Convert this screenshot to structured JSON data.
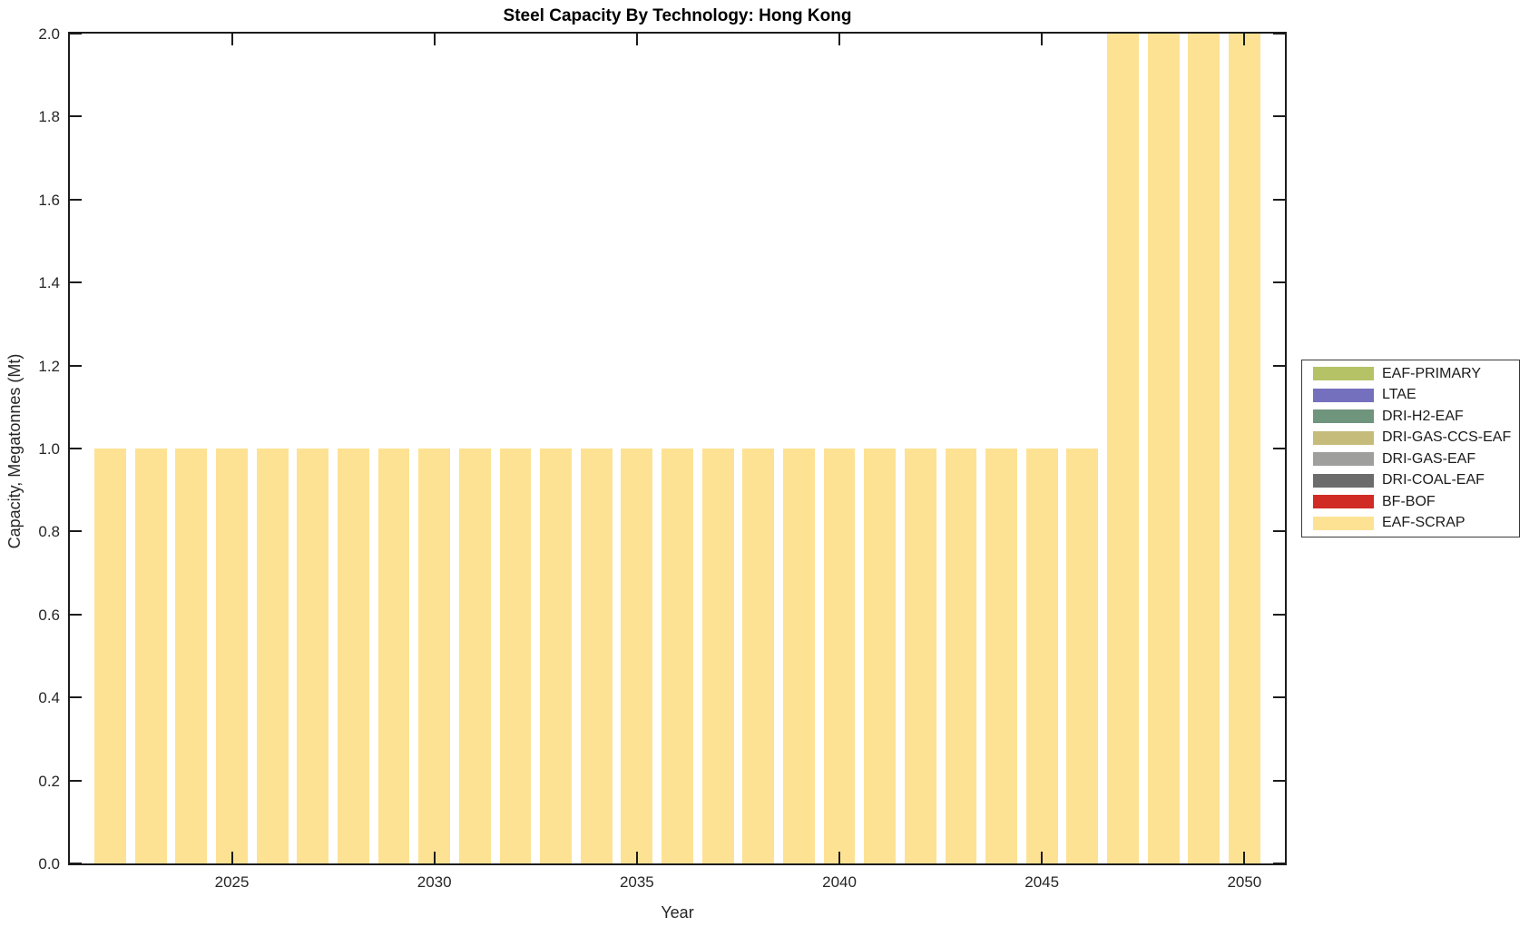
{
  "title": "Steel Capacity By Technology: Hong Kong",
  "axes": {
    "xlabel": "Year",
    "ylabel": "Capacity, Megatonnes (Mt)"
  },
  "chart_data": {
    "type": "bar",
    "stacked": true,
    "title": "Steel Capacity By Technology: Hong Kong",
    "xlabel": "Year",
    "ylabel": "Capacity, Megatonnes (Mt)",
    "x": [
      2022,
      2023,
      2024,
      2025,
      2026,
      2027,
      2028,
      2029,
      2030,
      2031,
      2032,
      2033,
      2034,
      2035,
      2036,
      2037,
      2038,
      2039,
      2040,
      2041,
      2042,
      2043,
      2044,
      2045,
      2046,
      2047,
      2048,
      2049,
      2050
    ],
    "series": [
      {
        "name": "EAF-SCRAP",
        "color": "#fde294",
        "values": [
          1.0,
          1.0,
          1.0,
          1.0,
          1.0,
          1.0,
          1.0,
          1.0,
          1.0,
          1.0,
          1.0,
          1.0,
          1.0,
          1.0,
          1.0,
          1.0,
          1.0,
          1.0,
          1.0,
          1.0,
          1.0,
          1.0,
          1.0,
          1.0,
          1.0,
          2.0,
          2.0,
          2.0,
          2.0
        ]
      }
    ],
    "xlim": [
      2021,
      2051
    ],
    "ylim": [
      0,
      2
    ],
    "xticks": [
      2025,
      2030,
      2035,
      2040,
      2045,
      2050
    ],
    "yticks": [
      0.0,
      0.2,
      0.4,
      0.6,
      0.8,
      1.0,
      1.2,
      1.4,
      1.6,
      1.8,
      2.0
    ],
    "ytick_labels": [
      "0.0",
      "0.2",
      "0.4",
      "0.6",
      "0.8",
      "1.0",
      "1.2",
      "1.4",
      "1.6",
      "1.8",
      "2.0"
    ],
    "grid": false,
    "legend_position": "outside-right",
    "legend": [
      {
        "label": "EAF-PRIMARY",
        "color": "#b5c266"
      },
      {
        "label": "LTAE",
        "color": "#7570bd"
      },
      {
        "label": "DRI-H2-EAF",
        "color": "#6f957c"
      },
      {
        "label": "DRI-GAS-CCS-EAF",
        "color": "#c5bc7b"
      },
      {
        "label": "DRI-GAS-EAF",
        "color": "#9f9f9d"
      },
      {
        "label": "DRI-COAL-EAF",
        "color": "#6c6c6c"
      },
      {
        "label": "BF-BOF",
        "color": "#d02b24"
      },
      {
        "label": "EAF-SCRAP",
        "color": "#fde294"
      }
    ],
    "frame_color": "#1c1c1c",
    "bar_width_fraction": 0.78
  }
}
